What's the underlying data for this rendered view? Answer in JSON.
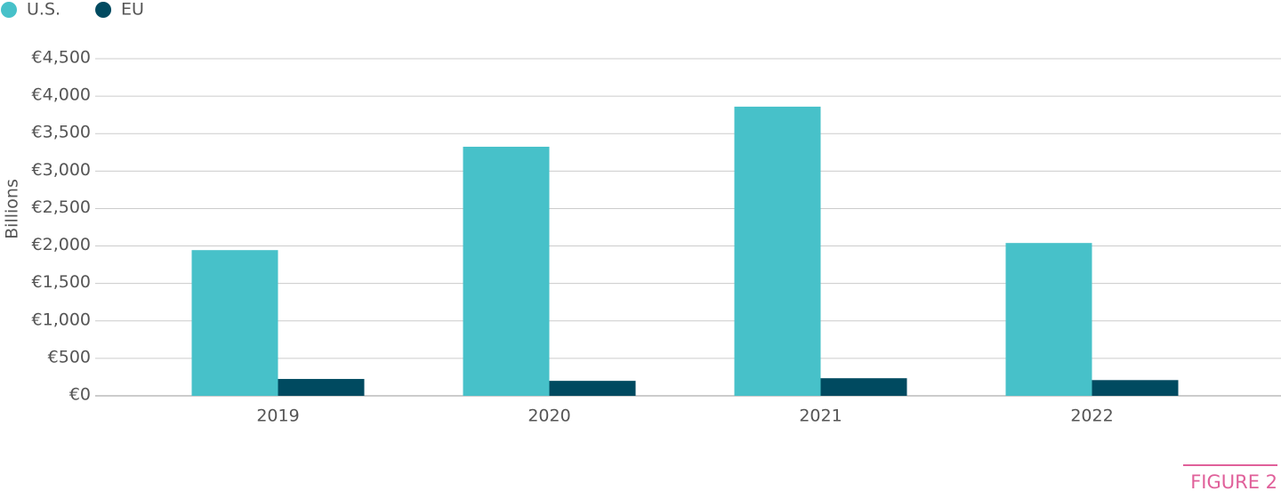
{
  "chart_data": {
    "type": "bar",
    "y_axis_label": "Billions",
    "annotation": "FIGURE 2",
    "categories": [
      "2019",
      "2020",
      "2021",
      "2022"
    ],
    "series": [
      {
        "name": "U.S.",
        "color": "#47c1c9",
        "values": [
          1945,
          3325,
          3860,
          2040
        ]
      },
      {
        "name": "EU",
        "color": "#004a60",
        "values": [
          225,
          200,
          235,
          210
        ]
      }
    ],
    "ylim": [
      0,
      4500
    ],
    "yticks": [
      {
        "value": 0,
        "label": "€0"
      },
      {
        "value": 500,
        "label": "€500"
      },
      {
        "value": 1000,
        "label": "€1,000"
      },
      {
        "value": 1500,
        "label": "€1,500"
      },
      {
        "value": 2000,
        "label": "€2,000"
      },
      {
        "value": 2500,
        "label": "€2,500"
      },
      {
        "value": 3000,
        "label": "€3,000"
      },
      {
        "value": 3500,
        "label": "€3,500"
      },
      {
        "value": 4000,
        "label": "€4,000"
      },
      {
        "value": 4500,
        "label": "€4,500"
      }
    ],
    "grid": true,
    "legend": "top-left"
  }
}
